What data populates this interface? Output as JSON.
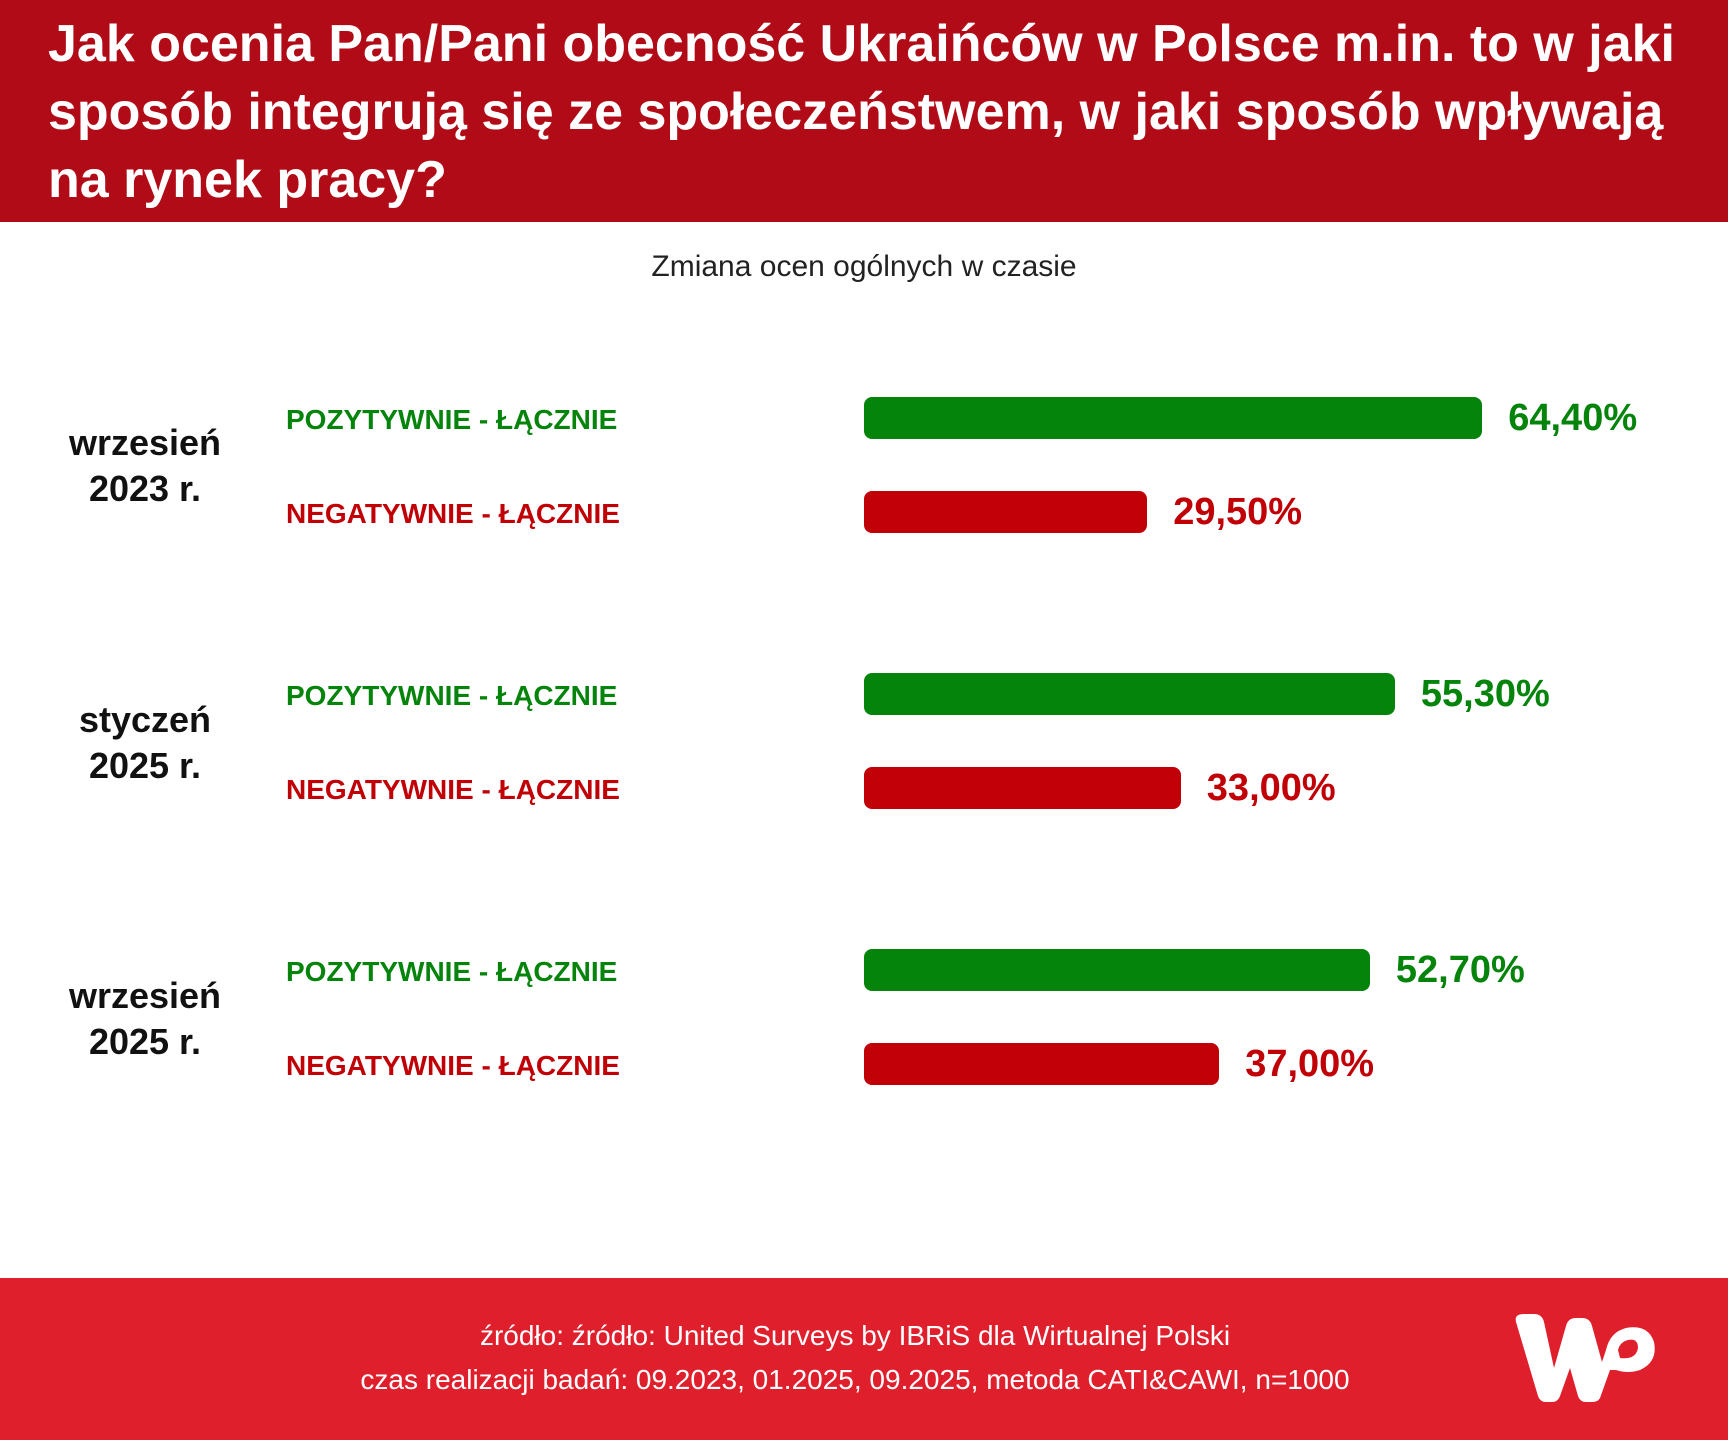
{
  "header": {
    "title": "Jak ocenia Pan/Pani obecność Ukraińców w Polsce m.in. to w jaki sposób integrują się ze społeczeństwem, w jaki sposób wpływają na rynek pracy?"
  },
  "colors": {
    "header_bg": "#b10b18",
    "footer_bg": "#e01f2c",
    "positive": "#05840c",
    "negative": "#c00006"
  },
  "chart_data": {
    "type": "bar",
    "title": "Jak ocenia Pan/Pani obecność Ukraińców w Polsce m.in. to w jaki sposób integrują się ze społeczeństwem, w jaki sposób wpływają na rynek pracy?",
    "subtitle": "Zmiana ocen ogólnych w czasie",
    "orientation": "horizontal",
    "xlim": [
      0,
      100
    ],
    "grid": false,
    "groups": [
      {
        "period": "wrzesień 2023 r.",
        "rows": [
          {
            "label": "POZYTYWNIE - ŁĄCZNIE",
            "value": 64.4,
            "value_label": "64,40%",
            "kind": "positive"
          },
          {
            "label": "NEGATYWNIE - ŁĄCZNIE",
            "value": 29.5,
            "value_label": "29,50%",
            "kind": "negative"
          }
        ]
      },
      {
        "period": "styczeń 2025 r.",
        "rows": [
          {
            "label": "POZYTYWNIE - ŁĄCZNIE",
            "value": 55.3,
            "value_label": "55,30%",
            "kind": "positive"
          },
          {
            "label": "NEGATYWNIE - ŁĄCZNIE",
            "value": 33.0,
            "value_label": "33,00%",
            "kind": "negative"
          }
        ]
      },
      {
        "period": "wrzesień 2025 r.",
        "rows": [
          {
            "label": "POZYTYWNIE - ŁĄCZNIE",
            "value": 52.7,
            "value_label": "52,70%",
            "kind": "positive"
          },
          {
            "label": "NEGATYWNIE - ŁĄCZNIE",
            "value": 37.0,
            "value_label": "37,00%",
            "kind": "negative"
          }
        ]
      }
    ]
  },
  "footer": {
    "source": "źródło: źródło: United Surveys by IBRiS dla Wirtualnej Polski",
    "method": "czas realizacji badań: 09.2023, 01.2025, 09.2025, metoda CATI&CAWI, n=1000",
    "logo_icon": "wp-logo-icon",
    "logo_text": "WP"
  }
}
